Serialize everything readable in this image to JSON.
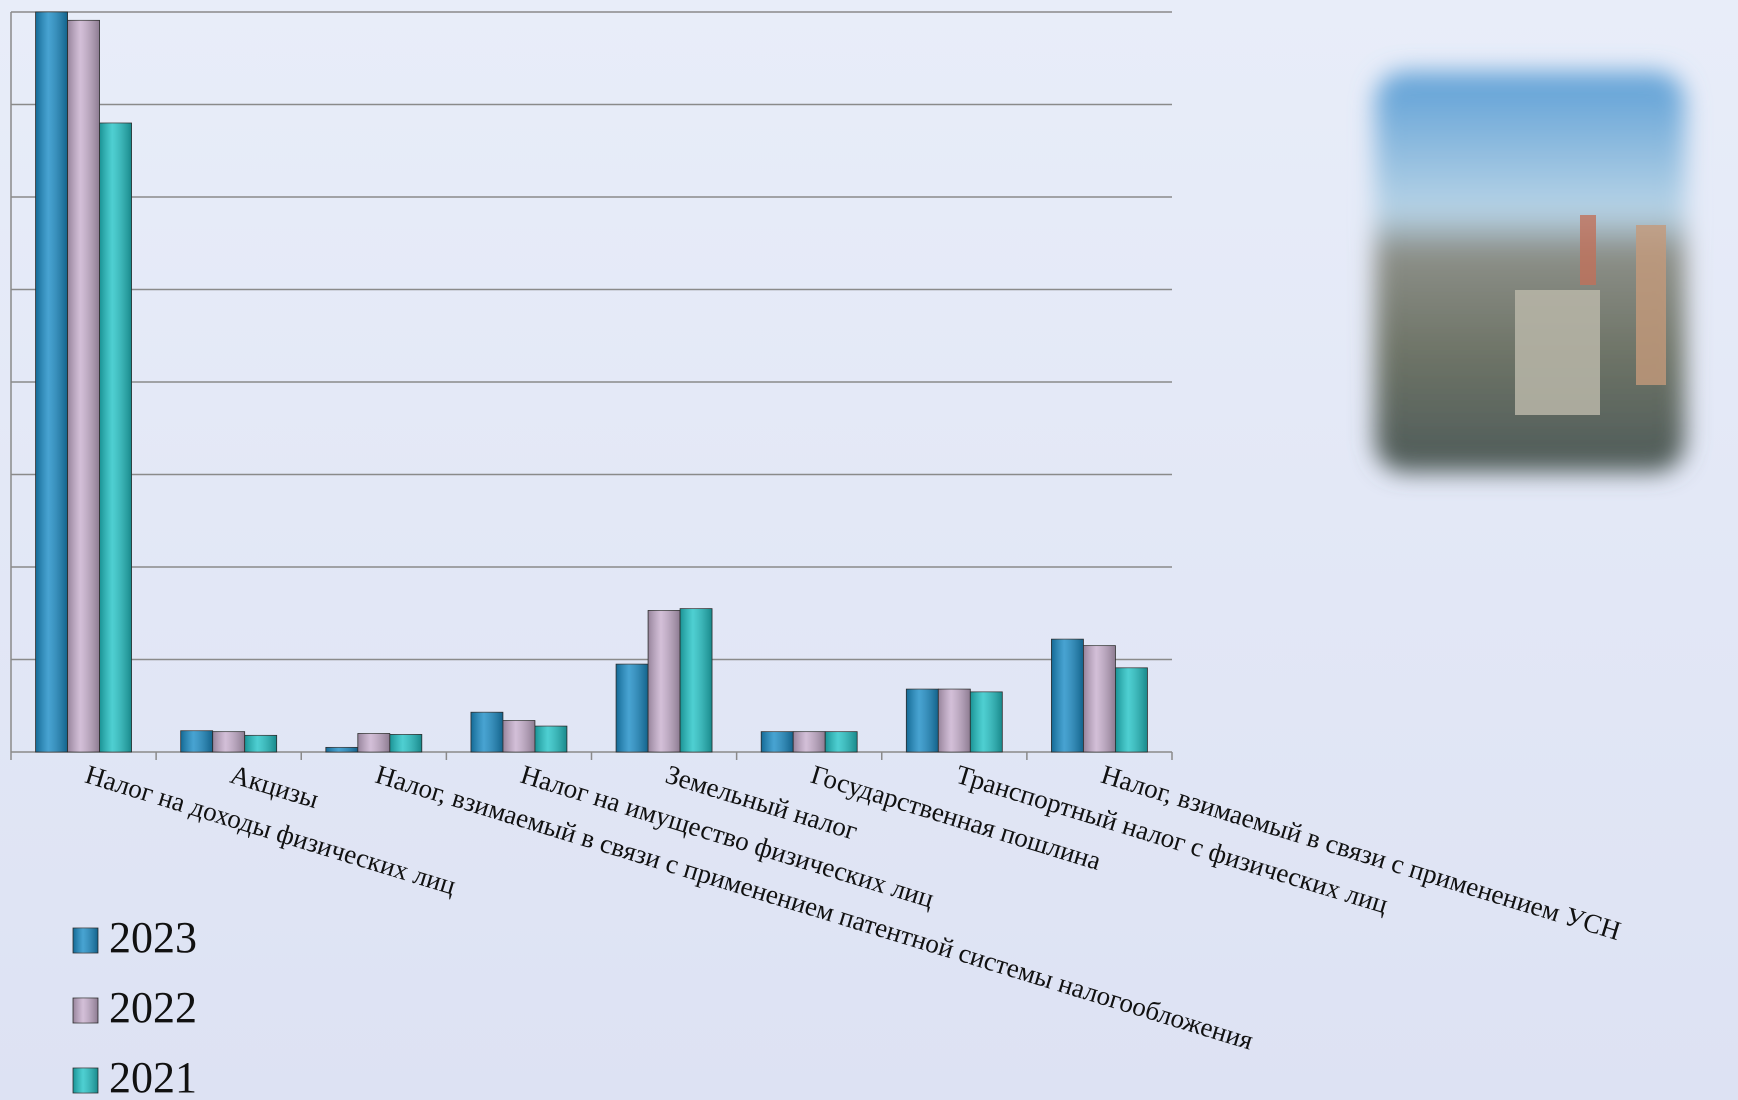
{
  "chart_data": {
    "type": "bar",
    "categories": [
      "Налог на доходы физических лиц",
      "Акцизы",
      "Налог, взимаемый в связи с применением патентной системы налогообложения",
      "Налог на имущество физических лиц",
      "Земельный налог",
      "Государственная пошлина",
      "Транспортный налог с физических лиц",
      "Налог, взимаемый в связи с применением УСН"
    ],
    "series": [
      {
        "name": "2023",
        "color": "#1a8cc6",
        "values": [
          8.0,
          0.23,
          0.05,
          0.43,
          0.95,
          0.22,
          0.68,
          1.22
        ]
      },
      {
        "name": "2022",
        "color": "#c8afce",
        "values": [
          7.91,
          0.22,
          0.2,
          0.34,
          1.53,
          0.22,
          0.68,
          1.15
        ]
      },
      {
        "name": "2021",
        "color": "#22c3c6",
        "values": [
          6.8,
          0.18,
          0.19,
          0.28,
          1.55,
          0.22,
          0.65,
          0.91
        ]
      }
    ],
    "ylim": [
      0,
      8
    ],
    "yticks": [
      0,
      1,
      2,
      3,
      4,
      5,
      6,
      7,
      8
    ],
    "grid": true
  }
}
